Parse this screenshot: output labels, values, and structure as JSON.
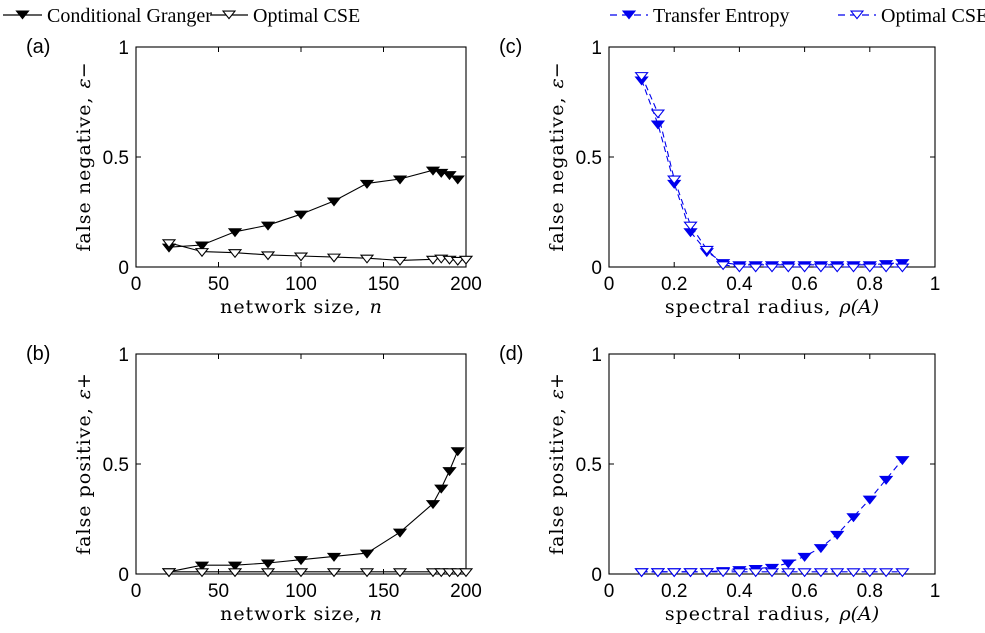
{
  "legend": [
    {
      "label": "Conditional Granger",
      "color": "#000000",
      "marker": "filled-down-triangle",
      "line": "solid"
    },
    {
      "label": "Optimal CSE",
      "color": "#000000",
      "marker": "open-down-triangle",
      "line": "solid"
    },
    {
      "label": "Transfer Entropy",
      "color": "#0000ee",
      "marker": "filled-down-triangle",
      "line": "dashed"
    },
    {
      "label": "Optimal CSE",
      "color": "#0000ee",
      "marker": "open-down-triangle",
      "line": "dashed"
    }
  ],
  "chart_data": [
    {
      "type": "line",
      "panel_label": "(a)",
      "xlabel": "network size,",
      "xsymbol": "n",
      "ylabel": "false negative,",
      "ysymbol": "ε−",
      "xlim": [
        0,
        200
      ],
      "ylim": [
        0,
        1
      ],
      "xticks": [
        "0",
        "50",
        "100",
        "150",
        "200"
      ],
      "xtick_values": [
        0,
        50,
        100,
        150,
        200
      ],
      "yticks": [
        "0",
        "0.5",
        "1"
      ],
      "ytick_values": [
        0,
        0.5,
        1
      ],
      "grid": false,
      "color": "#000000",
      "dashed": false,
      "series": [
        {
          "name": "Conditional Granger",
          "marker": "filled",
          "x": [
            20,
            40,
            60,
            80,
            100,
            120,
            140,
            160,
            180,
            185,
            190,
            195
          ],
          "y": [
            0.09,
            0.1,
            0.16,
            0.19,
            0.24,
            0.3,
            0.38,
            0.4,
            0.44,
            0.43,
            0.42,
            0.4
          ]
        },
        {
          "name": "Optimal CSE",
          "marker": "open",
          "x": [
            20,
            40,
            60,
            80,
            100,
            120,
            140,
            160,
            180,
            185,
            190,
            195,
            200
          ],
          "y": [
            0.11,
            0.07,
            0.065,
            0.055,
            0.05,
            0.045,
            0.04,
            0.03,
            0.035,
            0.04,
            0.035,
            0.03,
            0.035
          ]
        }
      ]
    },
    {
      "type": "line",
      "panel_label": "(b)",
      "xlabel": "network size,",
      "xsymbol": "n",
      "ylabel": "false positive,",
      "ysymbol": "ε+",
      "xlim": [
        0,
        200
      ],
      "ylim": [
        0,
        1
      ],
      "xticks": [
        "0",
        "50",
        "100",
        "150",
        "200"
      ],
      "xtick_values": [
        0,
        50,
        100,
        150,
        200
      ],
      "yticks": [
        "0",
        "0.5",
        "1"
      ],
      "ytick_values": [
        0,
        0.5,
        1
      ],
      "grid": false,
      "color": "#000000",
      "dashed": false,
      "series": [
        {
          "name": "Conditional Granger",
          "marker": "filled",
          "x": [
            20,
            40,
            60,
            80,
            100,
            120,
            140,
            160,
            180,
            185,
            190,
            195
          ],
          "y": [
            0.01,
            0.04,
            0.04,
            0.05,
            0.065,
            0.08,
            0.095,
            0.19,
            0.32,
            0.39,
            0.47,
            0.56
          ]
        },
        {
          "name": "Optimal CSE",
          "marker": "open",
          "x": [
            20,
            40,
            60,
            80,
            100,
            120,
            140,
            160,
            180,
            185,
            190,
            195,
            200
          ],
          "y": [
            0.01,
            0.01,
            0.01,
            0.01,
            0.01,
            0.01,
            0.01,
            0.01,
            0.01,
            0.01,
            0.01,
            0.01,
            0.01
          ]
        }
      ]
    },
    {
      "type": "line",
      "panel_label": "(c)",
      "xlabel": "spectral radius,",
      "xsymbol": "ρ(A)",
      "ylabel": "false negative,",
      "ysymbol": "ε−",
      "xlim": [
        0,
        1
      ],
      "ylim": [
        0,
        1
      ],
      "xticks": [
        "0",
        "0.2",
        "0.4",
        "0.6",
        "0.8",
        "1"
      ],
      "xtick_values": [
        0,
        0.2,
        0.4,
        0.6,
        0.8,
        1
      ],
      "yticks": [
        "0",
        "0.5",
        "1"
      ],
      "ytick_values": [
        0,
        0.5,
        1
      ],
      "grid": false,
      "color": "#0000ee",
      "dashed": true,
      "series": [
        {
          "name": "Transfer Entropy",
          "marker": "filled",
          "x": [
            0.1,
            0.15,
            0.2,
            0.25,
            0.3,
            0.35,
            0.4,
            0.45,
            0.5,
            0.55,
            0.6,
            0.65,
            0.7,
            0.75,
            0.8,
            0.85,
            0.9
          ],
          "y": [
            0.85,
            0.65,
            0.38,
            0.16,
            0.07,
            0.02,
            0.01,
            0.01,
            0.01,
            0.01,
            0.01,
            0.01,
            0.01,
            0.01,
            0.01,
            0.015,
            0.02
          ]
        },
        {
          "name": "Optimal CSE",
          "marker": "open",
          "x": [
            0.1,
            0.15,
            0.2,
            0.25,
            0.3,
            0.35,
            0.4,
            0.45,
            0.5,
            0.55,
            0.6,
            0.65,
            0.7,
            0.75,
            0.8,
            0.85,
            0.9
          ],
          "y": [
            0.87,
            0.7,
            0.4,
            0.19,
            0.08,
            0.01,
            0.0,
            0.0,
            0.0,
            0.0,
            0.0,
            0.0,
            0.0,
            0.0,
            0.0,
            0.0,
            0.0
          ]
        }
      ]
    },
    {
      "type": "line",
      "panel_label": "(d)",
      "xlabel": "spectral radius,",
      "xsymbol": "ρ(A)",
      "ylabel": "false positive,",
      "ysymbol": "ε+",
      "xlim": [
        0,
        1
      ],
      "ylim": [
        0,
        1
      ],
      "xticks": [
        "0",
        "0.2",
        "0.4",
        "0.6",
        "0.8",
        "1"
      ],
      "xtick_values": [
        0,
        0.2,
        0.4,
        0.6,
        0.8,
        1
      ],
      "yticks": [
        "0",
        "0.5",
        "1"
      ],
      "ytick_values": [
        0,
        0.5,
        1
      ],
      "grid": false,
      "color": "#0000ee",
      "dashed": true,
      "series": [
        {
          "name": "Transfer Entropy",
          "marker": "filled",
          "x": [
            0.1,
            0.15,
            0.2,
            0.25,
            0.3,
            0.35,
            0.4,
            0.45,
            0.5,
            0.55,
            0.6,
            0.65,
            0.7,
            0.75,
            0.8,
            0.85,
            0.9
          ],
          "y": [
            0.01,
            0.01,
            0.01,
            0.01,
            0.01,
            0.015,
            0.02,
            0.025,
            0.03,
            0.05,
            0.08,
            0.12,
            0.18,
            0.26,
            0.34,
            0.43,
            0.52
          ]
        },
        {
          "name": "Optimal CSE",
          "marker": "open",
          "x": [
            0.1,
            0.15,
            0.2,
            0.25,
            0.3,
            0.35,
            0.4,
            0.45,
            0.5,
            0.55,
            0.6,
            0.65,
            0.7,
            0.75,
            0.8,
            0.85,
            0.9
          ],
          "y": [
            0.01,
            0.01,
            0.01,
            0.01,
            0.01,
            0.01,
            0.01,
            0.01,
            0.01,
            0.01,
            0.01,
            0.01,
            0.01,
            0.01,
            0.01,
            0.01,
            0.01
          ]
        }
      ]
    }
  ]
}
